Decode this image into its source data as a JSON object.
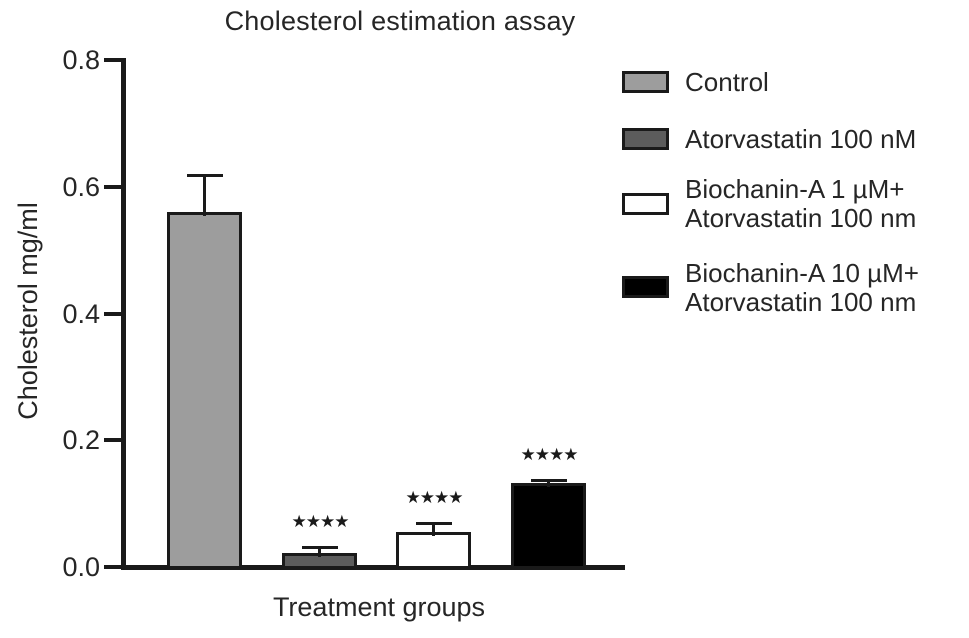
{
  "title": "Cholesterol estimation assay",
  "axes": {
    "y_label": "Cholesterol mg/ml",
    "x_label": "Treatment groups"
  },
  "legend": [
    {
      "label": "Control"
    },
    {
      "label": "Atorvastatin 100 nM"
    },
    {
      "label": "Biochanin-A 1 µM+\nAtorvastatin 100 nm"
    },
    {
      "label": "Biochanin-A 10 µM+\nAtorvastatin 100 nm"
    }
  ],
  "chart_data": {
    "type": "bar",
    "title": "Cholesterol estimation assay",
    "xlabel": "Treatment groups",
    "ylabel": "Cholesterol mg/ml",
    "ylim": [
      0,
      0.8
    ],
    "y_ticks": [
      0,
      0.2,
      0.4,
      0.6,
      0.8
    ],
    "grid": false,
    "legend_position": "right",
    "categories": [
      "Control",
      "Atorvastatin 100 nM",
      "Biochanin-A 1 µM+ Atorvastatin 100 nm",
      "Biochanin-A 10 µM+ Atorvastatin 100 nm"
    ],
    "values": [
      0.56,
      0.022,
      0.056,
      0.133
    ],
    "errors": [
      0.06,
      0.011,
      0.015,
      0.006
    ],
    "significance": [
      "",
      "****",
      "****",
      "****"
    ],
    "bar_colors": [
      "#9d9d9d",
      "#5c5c5c",
      "#ffffff",
      "#000000"
    ]
  },
  "colors": {
    "axis": "#1a1a1a",
    "text": "#262626",
    "background": "#ffffff"
  }
}
